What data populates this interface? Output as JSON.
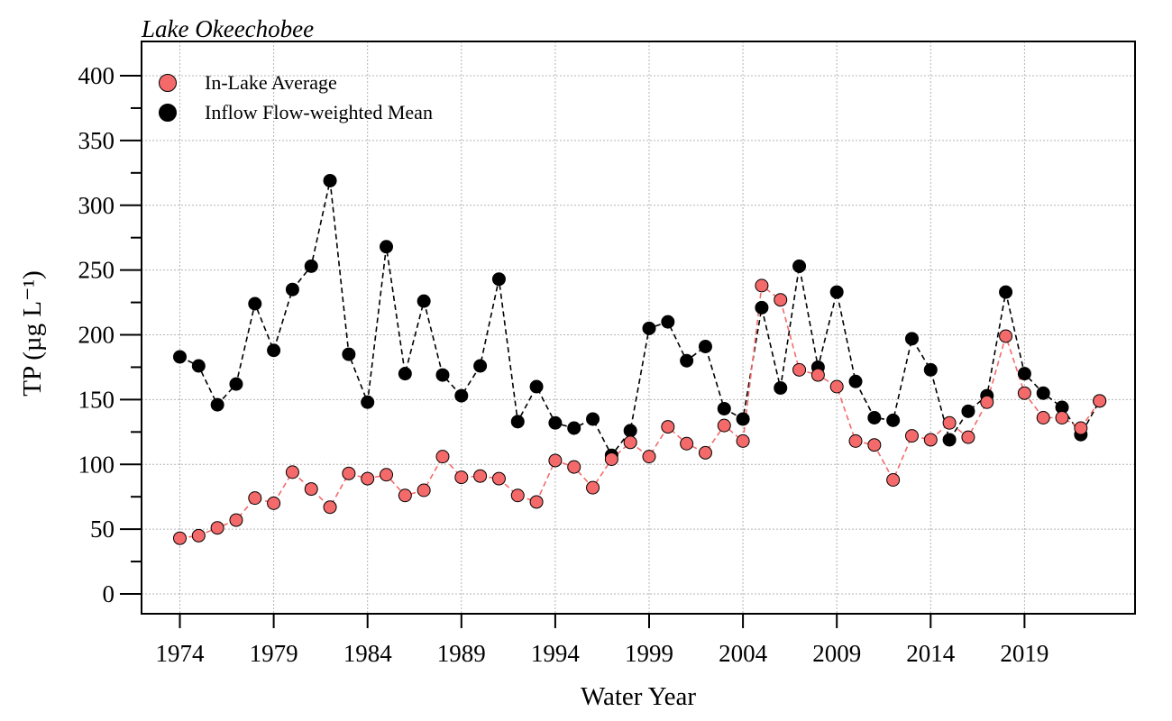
{
  "chart_data": {
    "type": "line",
    "title": "Lake Okeechobee",
    "xlabel": "Water Year",
    "ylabel": "TP (µg L⁻¹)",
    "xlim": [
      1972,
      2025
    ],
    "ylim": [
      -15,
      410
    ],
    "x_ticks": [
      1974,
      1979,
      1984,
      1989,
      1994,
      1999,
      2004,
      2009,
      2014,
      2019
    ],
    "y_ticks": [
      0,
      50,
      100,
      150,
      200,
      250,
      300,
      350,
      400
    ],
    "grid": true,
    "legend_position": "top-left",
    "series": [
      {
        "name": "In-Lake Average",
        "color": "#f46a6a",
        "x": [
          1974,
          1975,
          1976,
          1977,
          1978,
          1979,
          1980,
          1981,
          1982,
          1983,
          1984,
          1985,
          1986,
          1987,
          1988,
          1989,
          1990,
          1991,
          1992,
          1993,
          1994,
          1995,
          1996,
          1997,
          1998,
          1999,
          2000,
          2001,
          2002,
          2003,
          2004,
          2005,
          2006,
          2007,
          2008,
          2009,
          2010,
          2011,
          2012,
          2013,
          2014,
          2015,
          2016,
          2017,
          2018,
          2019,
          2020,
          2021,
          2022,
          2023
        ],
        "values": [
          43,
          45,
          51,
          57,
          74,
          70,
          94,
          81,
          67,
          93,
          89,
          92,
          76,
          80,
          106,
          90,
          91,
          89,
          76,
          71,
          103,
          98,
          82,
          104,
          117,
          106,
          129,
          116,
          109,
          130,
          118,
          238,
          227,
          173,
          169,
          160,
          118,
          115,
          88,
          122,
          119,
          132,
          121,
          148,
          199,
          155,
          136,
          136,
          128,
          149
        ]
      },
      {
        "name": "Inflow Flow-weighted Mean",
        "color": "#000000",
        "x": [
          1974,
          1975,
          1976,
          1977,
          1978,
          1979,
          1980,
          1981,
          1982,
          1983,
          1984,
          1985,
          1986,
          1987,
          1988,
          1989,
          1990,
          1991,
          1992,
          1993,
          1994,
          1995,
          1996,
          1997,
          1998,
          1999,
          2000,
          2001,
          2002,
          2003,
          2004,
          2005,
          2006,
          2007,
          2008,
          2009,
          2010,
          2011,
          2012,
          2013,
          2014,
          2015,
          2016,
          2017,
          2018,
          2019,
          2020,
          2021,
          2022,
          2023
        ],
        "values": [
          183,
          176,
          146,
          162,
          224,
          188,
          235,
          253,
          319,
          185,
          148,
          268,
          170,
          226,
          169,
          153,
          176,
          243,
          133,
          160,
          132,
          128,
          135,
          107,
          126,
          205,
          210,
          180,
          191,
          143,
          135,
          221,
          159,
          253,
          175,
          233,
          164,
          136,
          134,
          197,
          173,
          119,
          141,
          153,
          233,
          170,
          155,
          144,
          123,
          149
        ]
      }
    ]
  }
}
